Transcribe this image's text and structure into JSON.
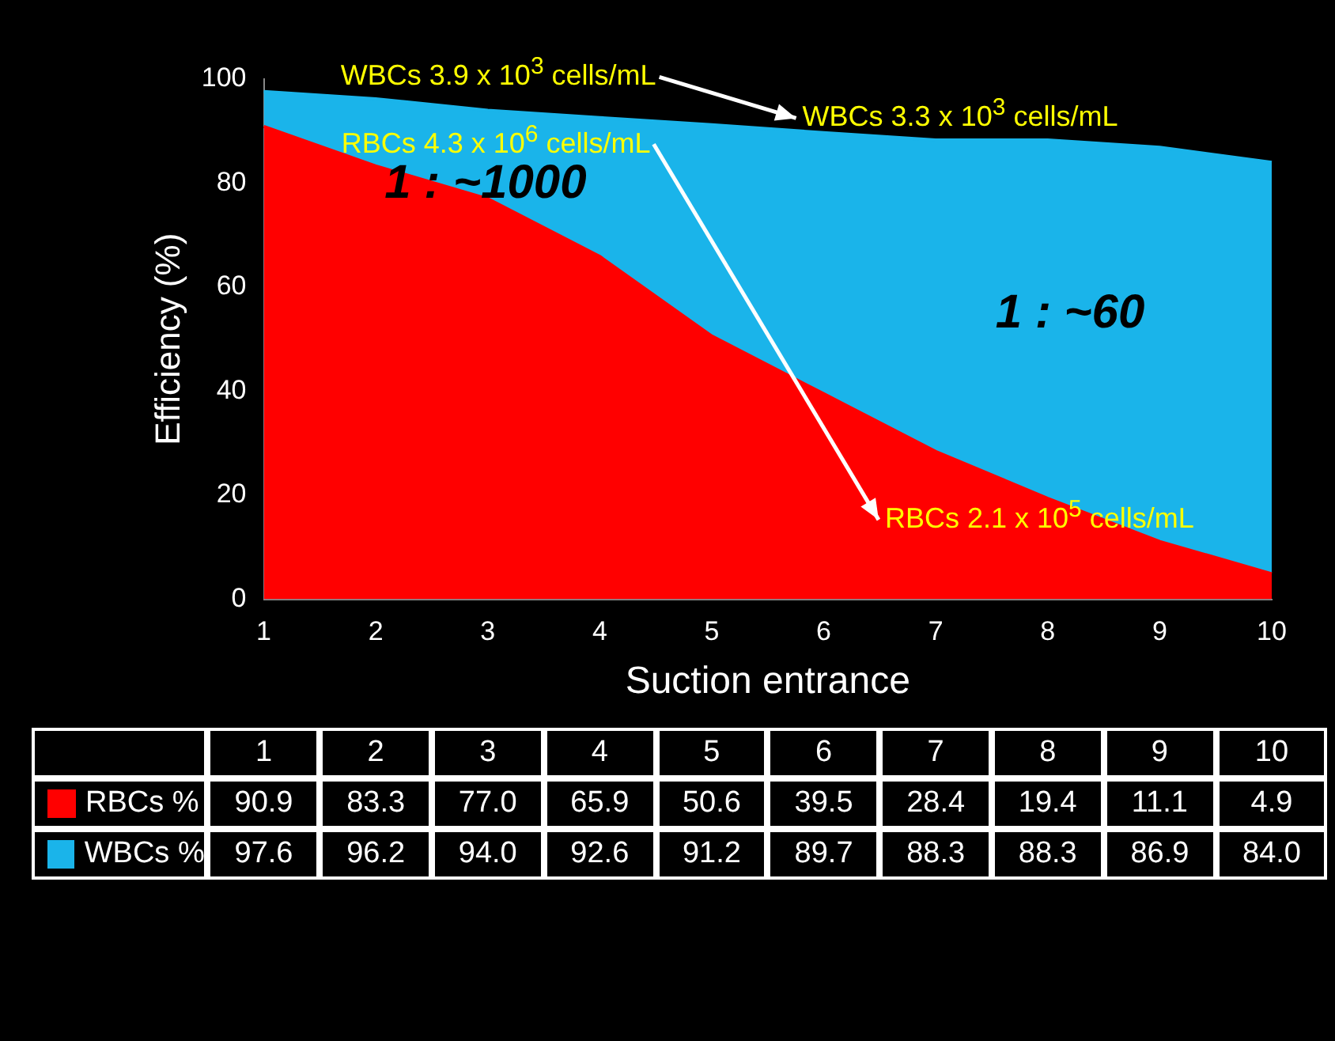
{
  "chart_data": {
    "type": "area",
    "xlabel": "Suction entrance",
    "ylabel": "Efficiency (%)",
    "categories": [
      "1",
      "2",
      "3",
      "4",
      "5",
      "6",
      "7",
      "8",
      "9",
      "10"
    ],
    "series": [
      {
        "name": "RBCs %",
        "color": "#ff0000",
        "values": [
          90.9,
          83.3,
          77.0,
          65.9,
          50.6,
          39.5,
          28.4,
          19.4,
          11.1,
          4.9
        ],
        "value_labels": [
          "90.9",
          "83.3",
          "77.0",
          "65.9",
          "50.6",
          "39.5",
          "28.4",
          "19.4",
          "11.1",
          "4.9"
        ]
      },
      {
        "name": "WBCs %",
        "color": "#1ab4ea",
        "values": [
          97.6,
          96.2,
          94.0,
          92.6,
          91.2,
          89.7,
          88.3,
          88.3,
          86.9,
          84.0
        ],
        "value_labels": [
          "97.6",
          "96.2",
          "94.0",
          "92.6",
          "91.2",
          "89.7",
          "88.3",
          "88.3",
          "86.9",
          "84.0"
        ]
      }
    ],
    "ylim": [
      0,
      100
    ],
    "yticks": [
      0,
      20,
      40,
      60,
      80,
      100
    ],
    "legend": "bottom left",
    "annotations": [
      {
        "text": "WBCs 3.9 x 10$^{3}$ cells/mL",
        "x": "2",
        "y": 96.2
      },
      {
        "text": "WBCs 3.3 x 10$^{3}$ cells/mL",
        "x": "8",
        "y": 88.3
      },
      {
        "text": "RBCs  4.3 x 10$^{6}$ cells/mL",
        "x": "2",
        "y": 83.3
      },
      {
        "text": "RBCs  2.1 x 10$^{5}$ cells/mL",
        "x": "9",
        "y": 11.1
      },
      "1 : ~1000",
      "1 : ~60"
    ]
  }
}
